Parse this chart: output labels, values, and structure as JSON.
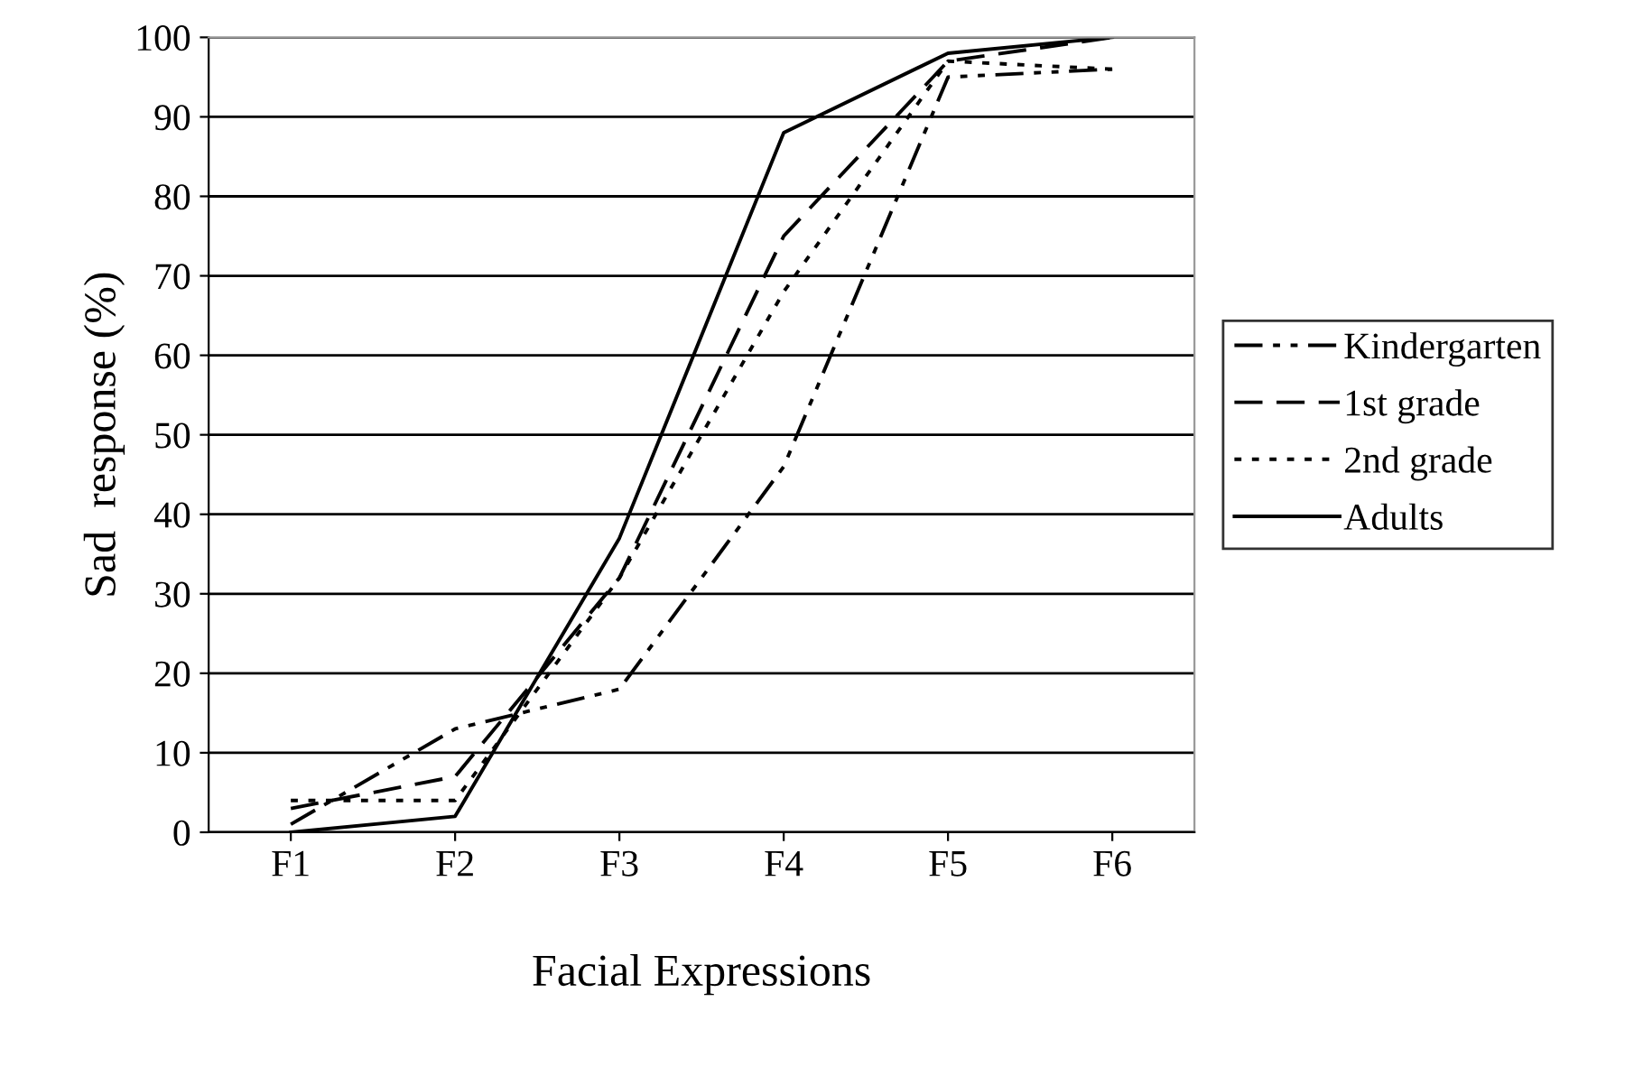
{
  "chart_data": {
    "type": "line",
    "xlabel": "Facial Expressions",
    "ylabel": "Sad  response (%)",
    "categories": [
      "F1",
      "F2",
      "F3",
      "F4",
      "F5",
      "F6"
    ],
    "ylim": [
      0,
      100
    ],
    "yticks": [
      0,
      10,
      20,
      30,
      40,
      50,
      60,
      70,
      80,
      90,
      100
    ],
    "grid": "y",
    "legend": "right",
    "marker": "none",
    "series": [
      {
        "name": "Kindergarten",
        "color": "#000000",
        "line_style": "dashdot",
        "values": [
          1,
          13,
          18,
          46,
          95,
          96
        ]
      },
      {
        "name": "1st grade",
        "color": "#000000",
        "line_style": "dashed",
        "values": [
          3,
          7,
          32,
          75,
          97,
          100
        ]
      },
      {
        "name": "2nd grade",
        "color": "#000000",
        "line_style": "dotted",
        "values": [
          4,
          4,
          32,
          68,
          97,
          96
        ]
      },
      {
        "name": "Adults",
        "color": "#000000",
        "line_style": "solid",
        "values": [
          0,
          2,
          37,
          88,
          98,
          100
        ]
      }
    ]
  }
}
